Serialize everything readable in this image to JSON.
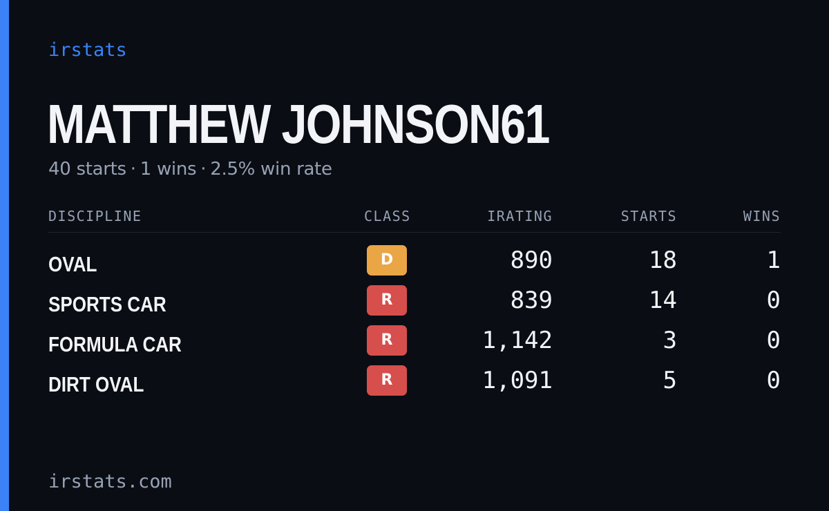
{
  "colors": {
    "background": "#0a0d14",
    "accent": "#3b82f6",
    "text_primary": "#f2f4f8",
    "text_muted": "#98a2b3",
    "class_d": "#eaa545",
    "class_r": "#d64f4c"
  },
  "brand": "irstats",
  "driver": {
    "name": "MATTHEW JOHNSON61"
  },
  "summary": {
    "starts": "40 starts",
    "wins": "1 wins",
    "win_rate": "2.5% win rate",
    "separator": "·"
  },
  "table": {
    "headers": {
      "discipline": "DISCIPLINE",
      "class": "CLASS",
      "irating": "IRATING",
      "starts": "STARTS",
      "wins": "WINS"
    },
    "rows": [
      {
        "discipline": "OVAL",
        "class": "D",
        "class_color": "#eaa545",
        "irating": "890",
        "starts": "18",
        "wins": "1"
      },
      {
        "discipline": "SPORTS CAR",
        "class": "R",
        "class_color": "#d64f4c",
        "irating": "839",
        "starts": "14",
        "wins": "0"
      },
      {
        "discipline": "FORMULA CAR",
        "class": "R",
        "class_color": "#d64f4c",
        "irating": "1,142",
        "starts": "3",
        "wins": "0"
      },
      {
        "discipline": "DIRT OVAL",
        "class": "R",
        "class_color": "#d64f4c",
        "irating": "1,091",
        "starts": "5",
        "wins": "0"
      }
    ]
  },
  "footer": "irstats.com"
}
